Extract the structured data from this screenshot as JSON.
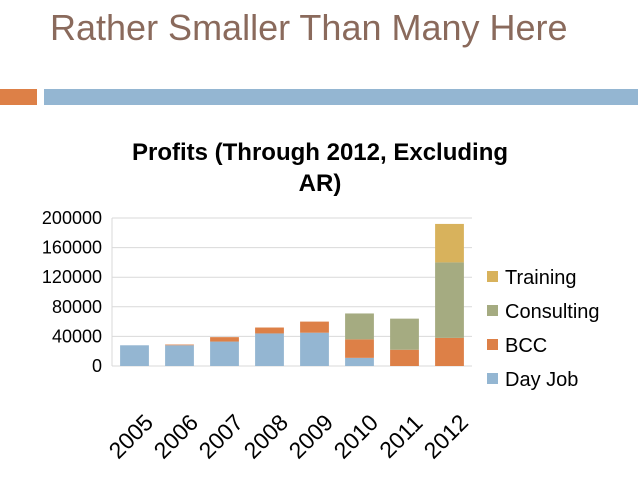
{
  "slide": {
    "title": "Rather Smaller Than Many Here"
  },
  "colors": {
    "title": "#8a6a5c",
    "divider_orange": "#dd8047",
    "divider_blue": "#94b6d2",
    "Day Job": "#94b6d2",
    "BCC": "#dd8047",
    "Consulting": "#a5ab81",
    "Training": "#d8b25c",
    "gridline": "#d9d9d9"
  },
  "chart_data": {
    "type": "bar",
    "stacked": true,
    "title": "Profits (Through 2012, Excluding AR)",
    "title_lines": [
      "Profits (Through 2012, Excluding",
      "AR)"
    ],
    "categories": [
      "2005",
      "2006",
      "2007",
      "2008",
      "2009",
      "2010",
      "2011",
      "2012"
    ],
    "series": [
      {
        "name": "Day Job",
        "values": [
          28000,
          28000,
          33000,
          44000,
          45000,
          11000,
          0,
          0
        ]
      },
      {
        "name": "BCC",
        "values": [
          0,
          1000,
          6000,
          8000,
          15000,
          25000,
          22000,
          38000
        ]
      },
      {
        "name": "Consulting",
        "values": [
          0,
          0,
          0,
          0,
          0,
          35000,
          42000,
          102000
        ]
      },
      {
        "name": "Training",
        "values": [
          0,
          0,
          0,
          0,
          0,
          0,
          0,
          52000
        ]
      }
    ],
    "yticks": [
      "200000",
      "160000",
      "120000",
      "80000",
      "40000",
      "0"
    ],
    "ylim": [
      0,
      200000
    ],
    "xlabel": "",
    "ylabel": "",
    "grid": true,
    "legend": {
      "position": "right",
      "order": [
        "Training",
        "Consulting",
        "BCC",
        "Day Job"
      ]
    }
  }
}
